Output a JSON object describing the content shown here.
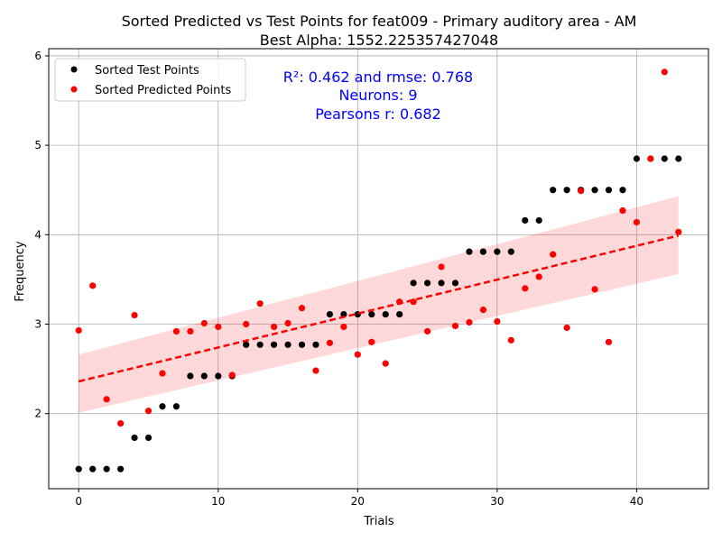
{
  "chart_data": {
    "type": "scatter",
    "title": "Sorted Predicted vs Test Points for feat009 - Primary auditory area - AM",
    "subtitle": "Best Alpha: 1552.225357427048",
    "xlabel": "Trials",
    "ylabel": "Frequency",
    "xlim": [
      -2.15,
      45.15
    ],
    "ylim": [
      1.16,
      6.08
    ],
    "xticks": [
      0,
      10,
      20,
      30,
      40
    ],
    "yticks": [
      2,
      3,
      4,
      5,
      6
    ],
    "grid": true,
    "legend_position": "top-left",
    "annotations": [
      "R²: 0.462 and rmse: 0.768",
      "Neurons: 9",
      "Pearsons r: 0.682"
    ],
    "series": [
      {
        "name": "Sorted Test Points",
        "color": "#000000",
        "x": [
          0,
          1,
          2,
          3,
          4,
          5,
          6,
          7,
          8,
          9,
          10,
          11,
          12,
          13,
          14,
          15,
          16,
          17,
          18,
          19,
          20,
          21,
          22,
          23,
          24,
          25,
          26,
          27,
          28,
          29,
          30,
          31,
          32,
          33,
          34,
          35,
          36,
          37,
          38,
          39,
          40,
          41,
          42,
          43
        ],
        "y": [
          1.38,
          1.38,
          1.38,
          1.38,
          1.73,
          1.73,
          2.08,
          2.08,
          2.42,
          2.42,
          2.42,
          2.42,
          2.77,
          2.77,
          2.77,
          2.77,
          2.77,
          2.77,
          3.11,
          3.11,
          3.11,
          3.11,
          3.11,
          3.11,
          3.46,
          3.46,
          3.46,
          3.46,
          3.81,
          3.81,
          3.81,
          3.81,
          4.16,
          4.16,
          4.5,
          4.5,
          4.5,
          4.5,
          4.5,
          4.5,
          4.85,
          4.85,
          4.85,
          4.85
        ]
      },
      {
        "name": "Sorted Predicted Points",
        "color": "#ff0000",
        "x": [
          0,
          1,
          2,
          3,
          4,
          5,
          6,
          7,
          8,
          9,
          10,
          11,
          12,
          13,
          14,
          15,
          16,
          17,
          18,
          19,
          20,
          21,
          22,
          23,
          24,
          25,
          26,
          27,
          28,
          29,
          30,
          31,
          32,
          33,
          34,
          35,
          36,
          37,
          38,
          39,
          40,
          41,
          42,
          43
        ],
        "y": [
          2.93,
          3.43,
          2.16,
          1.89,
          3.1,
          2.03,
          2.45,
          2.92,
          2.92,
          3.01,
          2.97,
          2.43,
          3.0,
          3.23,
          2.97,
          3.01,
          3.18,
          2.48,
          2.79,
          2.97,
          2.66,
          2.8,
          2.56,
          3.25,
          3.25,
          2.92,
          3.64,
          2.98,
          3.02,
          3.16,
          3.03,
          2.82,
          3.4,
          3.53,
          3.78,
          2.96,
          4.49,
          3.39,
          2.8,
          4.27,
          4.14,
          4.85,
          5.82,
          4.03
        ]
      }
    ],
    "fit": {
      "color": "#ff0000",
      "x": [
        0,
        43
      ],
      "y": [
        2.36,
        3.99
      ],
      "ci_upper": [
        2.66,
        4.43
      ],
      "ci_lower": [
        2.01,
        3.56
      ]
    }
  }
}
